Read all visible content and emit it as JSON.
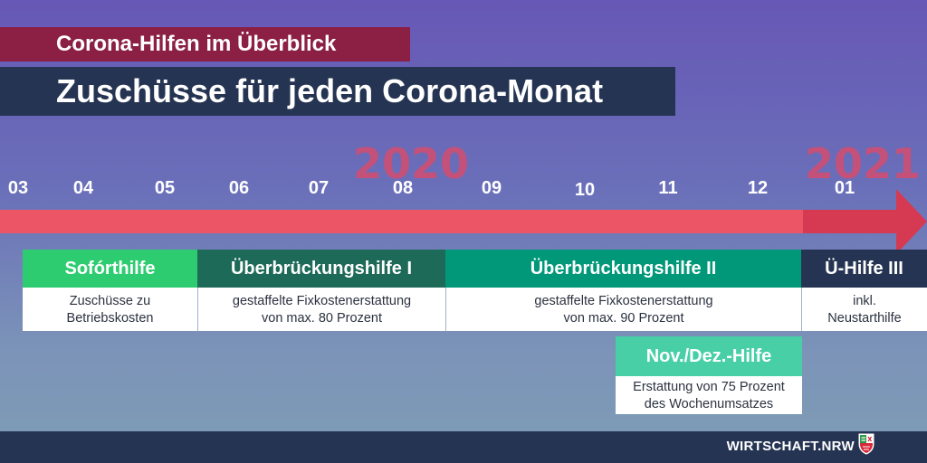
{
  "header": {
    "supertitle": "Corona-Hilfen im Überblick",
    "title": "Zuschüsse für jeden Corona-Monat"
  },
  "timeline": {
    "years": [
      "2020",
      "2021"
    ],
    "months": [
      "03",
      "04",
      "05",
      "06",
      "07",
      "08",
      "09",
      "10",
      "11",
      "12",
      "01"
    ]
  },
  "programs": [
    {
      "name": "Sofórthilfe",
      "lines": [
        "Zuschüsse zu",
        "Betriebskosten"
      ],
      "color": "#2ecc71"
    },
    {
      "name": "Überbrückungshilfe I",
      "lines": [
        "gestaffelte Fixkostenerstattung",
        "von max. 80 Prozent"
      ],
      "color": "#1e6a58"
    },
    {
      "name": "Überbrückungshilfe II",
      "lines": [
        "gestaffelte Fixkostenerstattung",
        "von max. 90 Prozent"
      ],
      "color": "#009879"
    },
    {
      "name": "Ü-Hilfe III",
      "lines": [
        "inkl.",
        "Neustarthilfe"
      ],
      "color": "#253452"
    },
    {
      "name": "Nov./Dez.-Hilfe",
      "lines": [
        "Erstattung von 75 Prozent",
        "des Wochenumsatzes"
      ],
      "color": "#48cfa6"
    }
  ],
  "footer": {
    "brand": "WIRTSCHAFT.NRW"
  },
  "colors": {
    "arrow_2020": "#ec5565",
    "arrow_2021": "#d63a52",
    "year_text": "#c4517a",
    "title_bg": "#253452",
    "supertitle_bg": "#8b2044"
  },
  "icons": {
    "crest": "nrw-crest-icon"
  }
}
